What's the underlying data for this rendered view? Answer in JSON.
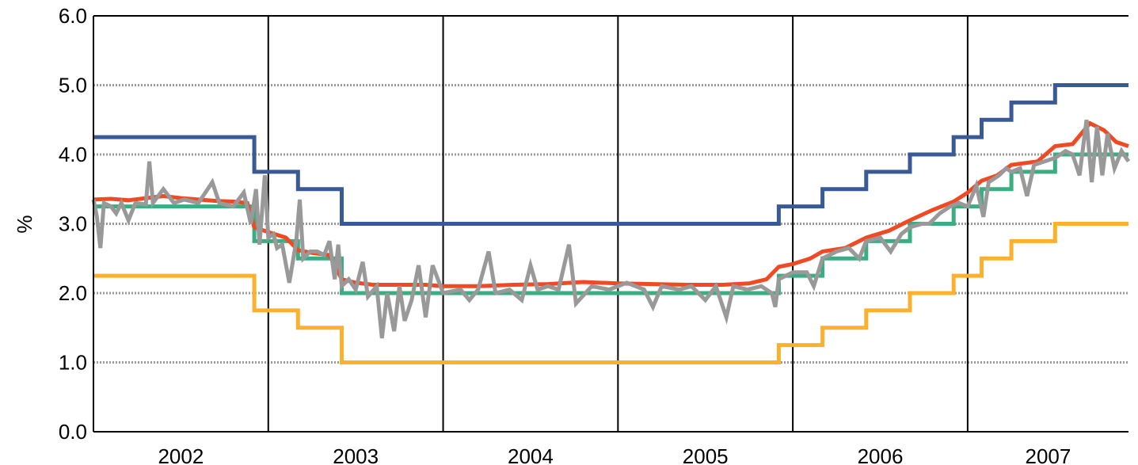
{
  "chart_data": {
    "type": "line",
    "ylabel": "%",
    "ylim": [
      0,
      6
    ],
    "yticks": [
      "0.0",
      "1.0",
      "2.0",
      "3.0",
      "4.0",
      "5.0",
      "6.0"
    ],
    "x_categories": [
      "2002",
      "2003",
      "2004",
      "2005",
      "2006",
      "2007"
    ],
    "xlim": [
      2002.0,
      2007.92
    ],
    "year_dividers": [
      2003,
      2004,
      2005,
      2006,
      2007
    ],
    "grid": "horizontal dotted",
    "colors": {
      "upper_rate": "#3A5A95",
      "lower_rate": "#FBB12E",
      "policy_rate": "#3AAE82",
      "red_series": "#F04A24",
      "grey_series": "#999999"
    },
    "series": [
      {
        "key": "upper_rate",
        "shape": "step",
        "points": [
          [
            2002.0,
            4.25
          ],
          [
            2002.92,
            4.25
          ],
          [
            2002.92,
            3.75
          ],
          [
            2003.17,
            3.75
          ],
          [
            2003.17,
            3.5
          ],
          [
            2003.42,
            3.5
          ],
          [
            2003.42,
            3.0
          ],
          [
            2005.92,
            3.0
          ],
          [
            2005.92,
            3.25
          ],
          [
            2006.17,
            3.25
          ],
          [
            2006.17,
            3.5
          ],
          [
            2006.42,
            3.5
          ],
          [
            2006.42,
            3.75
          ],
          [
            2006.67,
            3.75
          ],
          [
            2006.67,
            4.0
          ],
          [
            2006.92,
            4.0
          ],
          [
            2006.92,
            4.25
          ],
          [
            2007.08,
            4.25
          ],
          [
            2007.08,
            4.5
          ],
          [
            2007.25,
            4.5
          ],
          [
            2007.25,
            4.75
          ],
          [
            2007.5,
            4.75
          ],
          [
            2007.5,
            5.0
          ],
          [
            2007.92,
            5.0
          ]
        ]
      },
      {
        "key": "lower_rate",
        "shape": "step",
        "points": [
          [
            2002.0,
            2.25
          ],
          [
            2002.92,
            2.25
          ],
          [
            2002.92,
            1.75
          ],
          [
            2003.17,
            1.75
          ],
          [
            2003.17,
            1.5
          ],
          [
            2003.42,
            1.5
          ],
          [
            2003.42,
            1.0
          ],
          [
            2005.92,
            1.0
          ],
          [
            2005.92,
            1.25
          ],
          [
            2006.17,
            1.25
          ],
          [
            2006.17,
            1.5
          ],
          [
            2006.42,
            1.5
          ],
          [
            2006.42,
            1.75
          ],
          [
            2006.67,
            1.75
          ],
          [
            2006.67,
            2.0
          ],
          [
            2006.92,
            2.0
          ],
          [
            2006.92,
            2.25
          ],
          [
            2007.08,
            2.25
          ],
          [
            2007.08,
            2.5
          ],
          [
            2007.25,
            2.5
          ],
          [
            2007.25,
            2.75
          ],
          [
            2007.5,
            2.75
          ],
          [
            2007.5,
            3.0
          ],
          [
            2007.92,
            3.0
          ]
        ]
      },
      {
        "key": "policy_rate",
        "shape": "step",
        "points": [
          [
            2002.0,
            3.25
          ],
          [
            2002.92,
            3.25
          ],
          [
            2002.92,
            2.75
          ],
          [
            2003.17,
            2.75
          ],
          [
            2003.17,
            2.5
          ],
          [
            2003.42,
            2.5
          ],
          [
            2003.42,
            2.0
          ],
          [
            2005.92,
            2.0
          ],
          [
            2005.92,
            2.25
          ],
          [
            2006.17,
            2.25
          ],
          [
            2006.17,
            2.5
          ],
          [
            2006.42,
            2.5
          ],
          [
            2006.42,
            2.75
          ],
          [
            2006.67,
            2.75
          ],
          [
            2006.67,
            3.0
          ],
          [
            2006.92,
            3.0
          ],
          [
            2006.92,
            3.25
          ],
          [
            2007.08,
            3.25
          ],
          [
            2007.08,
            3.5
          ],
          [
            2007.25,
            3.5
          ],
          [
            2007.25,
            3.75
          ],
          [
            2007.5,
            3.75
          ],
          [
            2007.5,
            4.0
          ],
          [
            2007.92,
            4.0
          ]
        ]
      },
      {
        "key": "red_series",
        "shape": "line",
        "points": [
          [
            2002.0,
            3.35
          ],
          [
            2002.1,
            3.36
          ],
          [
            2002.2,
            3.34
          ],
          [
            2002.3,
            3.37
          ],
          [
            2002.4,
            3.4
          ],
          [
            2002.5,
            3.37
          ],
          [
            2002.6,
            3.35
          ],
          [
            2002.7,
            3.33
          ],
          [
            2002.8,
            3.32
          ],
          [
            2002.88,
            3.3
          ],
          [
            2002.92,
            2.95
          ],
          [
            2003.0,
            2.88
          ],
          [
            2003.1,
            2.8
          ],
          [
            2003.17,
            2.62
          ],
          [
            2003.25,
            2.58
          ],
          [
            2003.35,
            2.55
          ],
          [
            2003.42,
            2.2
          ],
          [
            2003.5,
            2.15
          ],
          [
            2003.6,
            2.12
          ],
          [
            2003.75,
            2.12
          ],
          [
            2003.9,
            2.12
          ],
          [
            2004.0,
            2.1
          ],
          [
            2004.2,
            2.1
          ],
          [
            2004.4,
            2.12
          ],
          [
            2004.6,
            2.13
          ],
          [
            2004.8,
            2.16
          ],
          [
            2005.0,
            2.14
          ],
          [
            2005.2,
            2.13
          ],
          [
            2005.4,
            2.12
          ],
          [
            2005.6,
            2.12
          ],
          [
            2005.75,
            2.14
          ],
          [
            2005.85,
            2.2
          ],
          [
            2005.92,
            2.38
          ],
          [
            2006.0,
            2.42
          ],
          [
            2006.1,
            2.5
          ],
          [
            2006.17,
            2.6
          ],
          [
            2006.3,
            2.65
          ],
          [
            2006.42,
            2.8
          ],
          [
            2006.55,
            2.9
          ],
          [
            2006.67,
            3.05
          ],
          [
            2006.8,
            3.2
          ],
          [
            2006.92,
            3.32
          ],
          [
            2007.0,
            3.45
          ],
          [
            2007.08,
            3.62
          ],
          [
            2007.17,
            3.7
          ],
          [
            2007.25,
            3.85
          ],
          [
            2007.4,
            3.9
          ],
          [
            2007.5,
            4.12
          ],
          [
            2007.6,
            4.15
          ],
          [
            2007.7,
            4.45
          ],
          [
            2007.78,
            4.35
          ],
          [
            2007.85,
            4.18
          ],
          [
            2007.92,
            4.12
          ]
        ]
      },
      {
        "key": "grey_series",
        "shape": "line",
        "points": [
          [
            2002.0,
            3.35
          ],
          [
            2002.02,
            3.1
          ],
          [
            2002.04,
            2.65
          ],
          [
            2002.06,
            3.3
          ],
          [
            2002.1,
            3.25
          ],
          [
            2002.13,
            3.15
          ],
          [
            2002.16,
            3.3
          ],
          [
            2002.2,
            3.05
          ],
          [
            2002.24,
            3.3
          ],
          [
            2002.3,
            3.28
          ],
          [
            2002.32,
            3.9
          ],
          [
            2002.34,
            3.3
          ],
          [
            2002.4,
            3.5
          ],
          [
            2002.46,
            3.3
          ],
          [
            2002.52,
            3.35
          ],
          [
            2002.6,
            3.3
          ],
          [
            2002.68,
            3.6
          ],
          [
            2002.72,
            3.3
          ],
          [
            2002.8,
            3.25
          ],
          [
            2002.86,
            3.45
          ],
          [
            2002.9,
            3.0
          ],
          [
            2002.93,
            3.5
          ],
          [
            2002.95,
            2.7
          ],
          [
            2002.98,
            3.7
          ],
          [
            2003.0,
            2.8
          ],
          [
            2003.03,
            2.85
          ],
          [
            2003.05,
            2.65
          ],
          [
            2003.08,
            2.7
          ],
          [
            2003.12,
            2.15
          ],
          [
            2003.16,
            2.75
          ],
          [
            2003.18,
            3.35
          ],
          [
            2003.2,
            2.5
          ],
          [
            2003.24,
            2.6
          ],
          [
            2003.28,
            2.6
          ],
          [
            2003.32,
            2.55
          ],
          [
            2003.35,
            2.75
          ],
          [
            2003.38,
            2.2
          ],
          [
            2003.4,
            2.7
          ],
          [
            2003.42,
            2.1
          ],
          [
            2003.46,
            2.2
          ],
          [
            2003.5,
            2.05
          ],
          [
            2003.54,
            2.45
          ],
          [
            2003.57,
            1.95
          ],
          [
            2003.62,
            2.1
          ],
          [
            2003.65,
            1.35
          ],
          [
            2003.68,
            2.0
          ],
          [
            2003.72,
            1.45
          ],
          [
            2003.75,
            2.1
          ],
          [
            2003.78,
            1.6
          ],
          [
            2003.82,
            1.9
          ],
          [
            2003.86,
            2.4
          ],
          [
            2003.9,
            1.65
          ],
          [
            2003.94,
            2.4
          ],
          [
            2004.0,
            2.0
          ],
          [
            2004.1,
            2.05
          ],
          [
            2004.15,
            1.9
          ],
          [
            2004.2,
            2.05
          ],
          [
            2004.26,
            2.6
          ],
          [
            2004.3,
            2.0
          ],
          [
            2004.38,
            2.05
          ],
          [
            2004.45,
            1.9
          ],
          [
            2004.5,
            2.4
          ],
          [
            2004.54,
            2.05
          ],
          [
            2004.6,
            2.1
          ],
          [
            2004.66,
            2.05
          ],
          [
            2004.72,
            2.7
          ],
          [
            2004.76,
            1.85
          ],
          [
            2004.85,
            2.1
          ],
          [
            2004.95,
            2.05
          ],
          [
            2005.05,
            2.15
          ],
          [
            2005.15,
            2.05
          ],
          [
            2005.2,
            1.8
          ],
          [
            2005.25,
            2.1
          ],
          [
            2005.35,
            2.05
          ],
          [
            2005.42,
            2.1
          ],
          [
            2005.5,
            1.9
          ],
          [
            2005.56,
            2.1
          ],
          [
            2005.62,
            1.65
          ],
          [
            2005.66,
            2.1
          ],
          [
            2005.74,
            2.05
          ],
          [
            2005.82,
            2.1
          ],
          [
            2005.88,
            2.0
          ],
          [
            2005.9,
            1.8
          ],
          [
            2005.92,
            2.2
          ],
          [
            2006.0,
            2.3
          ],
          [
            2006.08,
            2.3
          ],
          [
            2006.12,
            2.1
          ],
          [
            2006.17,
            2.5
          ],
          [
            2006.25,
            2.6
          ],
          [
            2006.32,
            2.65
          ],
          [
            2006.38,
            2.5
          ],
          [
            2006.42,
            2.75
          ],
          [
            2006.5,
            2.8
          ],
          [
            2006.56,
            2.6
          ],
          [
            2006.62,
            2.85
          ],
          [
            2006.67,
            2.95
          ],
          [
            2006.74,
            3.0
          ],
          [
            2006.78,
            3.0
          ],
          [
            2006.84,
            3.15
          ],
          [
            2006.9,
            3.25
          ],
          [
            2006.95,
            3.3
          ],
          [
            2007.0,
            3.25
          ],
          [
            2007.05,
            3.55
          ],
          [
            2007.09,
            3.1
          ],
          [
            2007.12,
            3.6
          ],
          [
            2007.18,
            3.7
          ],
          [
            2007.22,
            3.8
          ],
          [
            2007.25,
            3.75
          ],
          [
            2007.3,
            3.8
          ],
          [
            2007.34,
            3.4
          ],
          [
            2007.38,
            3.85
          ],
          [
            2007.44,
            3.9
          ],
          [
            2007.5,
            3.95
          ],
          [
            2007.56,
            4.05
          ],
          [
            2007.6,
            4.0
          ],
          [
            2007.64,
            3.7
          ],
          [
            2007.68,
            4.5
          ],
          [
            2007.71,
            3.6
          ],
          [
            2007.74,
            4.4
          ],
          [
            2007.77,
            3.7
          ],
          [
            2007.8,
            4.3
          ],
          [
            2007.84,
            3.8
          ],
          [
            2007.88,
            4.05
          ],
          [
            2007.92,
            3.9
          ]
        ]
      }
    ]
  }
}
